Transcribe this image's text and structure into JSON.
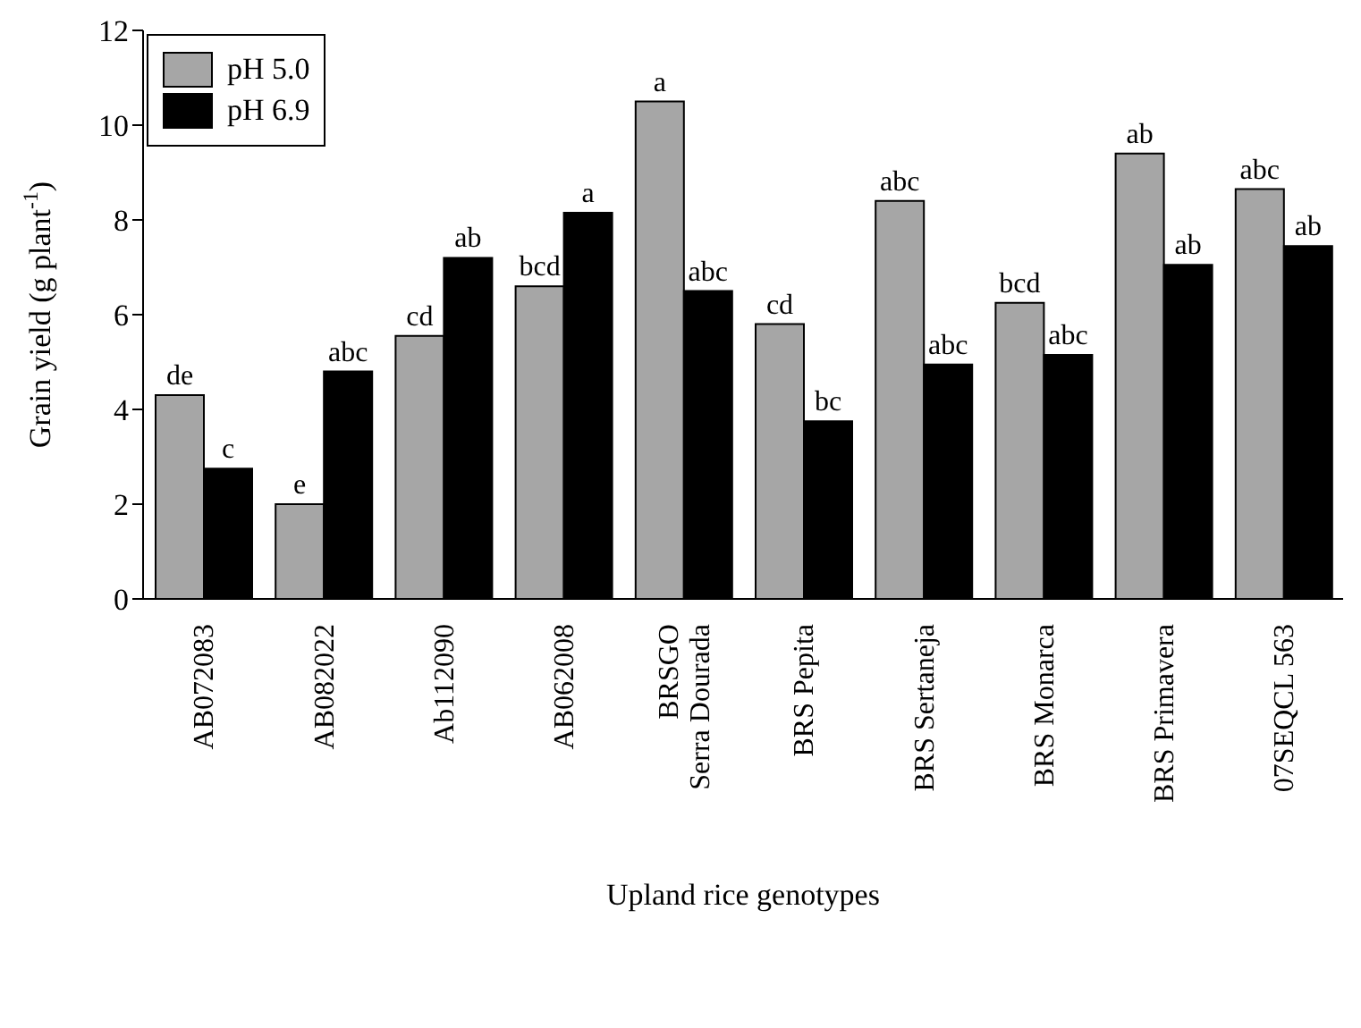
{
  "chart_data": {
    "type": "bar",
    "xlabel": "Upland rice genotypes",
    "ylabel": "Grain yield (g plant$^{-1}$)",
    "categories": [
      "AB072083",
      "AB082022",
      "Ab112090",
      "AB062008",
      "BRSGO\nSerra Dourada",
      "BRS Pepita",
      "BRS Sertaneja",
      "BRS Monarca",
      "BRS Primavera",
      "07SEQCL 563"
    ],
    "series": [
      {
        "name": "pH 5.0",
        "color": "#a6a6a6",
        "values": [
          4.3,
          2.0,
          5.55,
          6.6,
          10.5,
          5.8,
          8.4,
          6.25,
          9.4,
          8.65
        ],
        "value_labels": [
          "de",
          "e",
          "cd",
          "bcd",
          "a",
          "cd",
          "abc",
          "bcd",
          "ab",
          "abc"
        ]
      },
      {
        "name": "pH 6.9",
        "color": "#000000",
        "values": [
          2.75,
          4.8,
          7.2,
          8.15,
          6.5,
          3.75,
          4.95,
          5.15,
          7.05,
          7.45
        ],
        "value_labels": [
          "c",
          "abc",
          "ab",
          "a",
          "abc",
          "bc",
          "abc",
          "abc",
          "ab",
          "ab"
        ]
      }
    ],
    "ylim": [
      0,
      12
    ],
    "yticks": [
      0,
      2,
      4,
      6,
      8,
      10,
      12
    ],
    "grid": false,
    "legend": "top left"
  }
}
